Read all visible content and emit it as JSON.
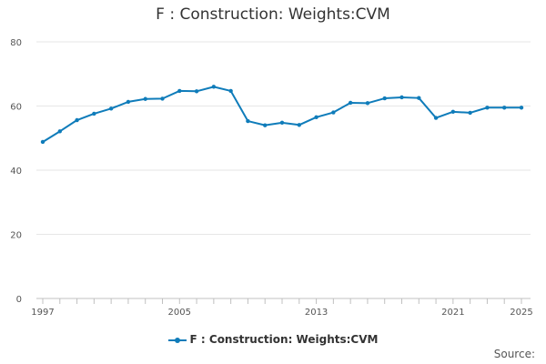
{
  "chart_data": {
    "type": "line",
    "title": "F : Construction: Weights:CVM",
    "xlabel": "",
    "ylabel": "",
    "x": [
      1997,
      1998,
      1999,
      2000,
      2001,
      2002,
      2003,
      2004,
      2005,
      2006,
      2007,
      2008,
      2009,
      2010,
      2011,
      2012,
      2013,
      2014,
      2015,
      2016,
      2017,
      2018,
      2019,
      2020,
      2021,
      2022,
      2023,
      2024,
      2025
    ],
    "series": [
      {
        "name": "F : Construction: Weights:CVM",
        "color": "#0f7cba",
        "values": [
          48.8,
          52.1,
          55.6,
          57.6,
          59.2,
          61.3,
          62.2,
          62.3,
          64.7,
          64.6,
          66.0,
          64.7,
          55.3,
          54.0,
          54.8,
          54.1,
          56.5,
          58.0,
          61.0,
          60.9,
          62.4,
          62.7,
          62.5,
          56.3,
          58.2,
          57.9,
          59.5,
          59.5,
          59.5
        ]
      }
    ],
    "xticks": [
      "1997",
      "2005",
      "2013",
      "2021",
      "2025"
    ],
    "yticks": [
      "0",
      "20",
      "40",
      "60",
      "80"
    ],
    "ylim": [
      0,
      80
    ],
    "xlim": [
      1997,
      2025
    ],
    "grid": true,
    "legend": "bottom-center"
  },
  "source_label": "Source:"
}
